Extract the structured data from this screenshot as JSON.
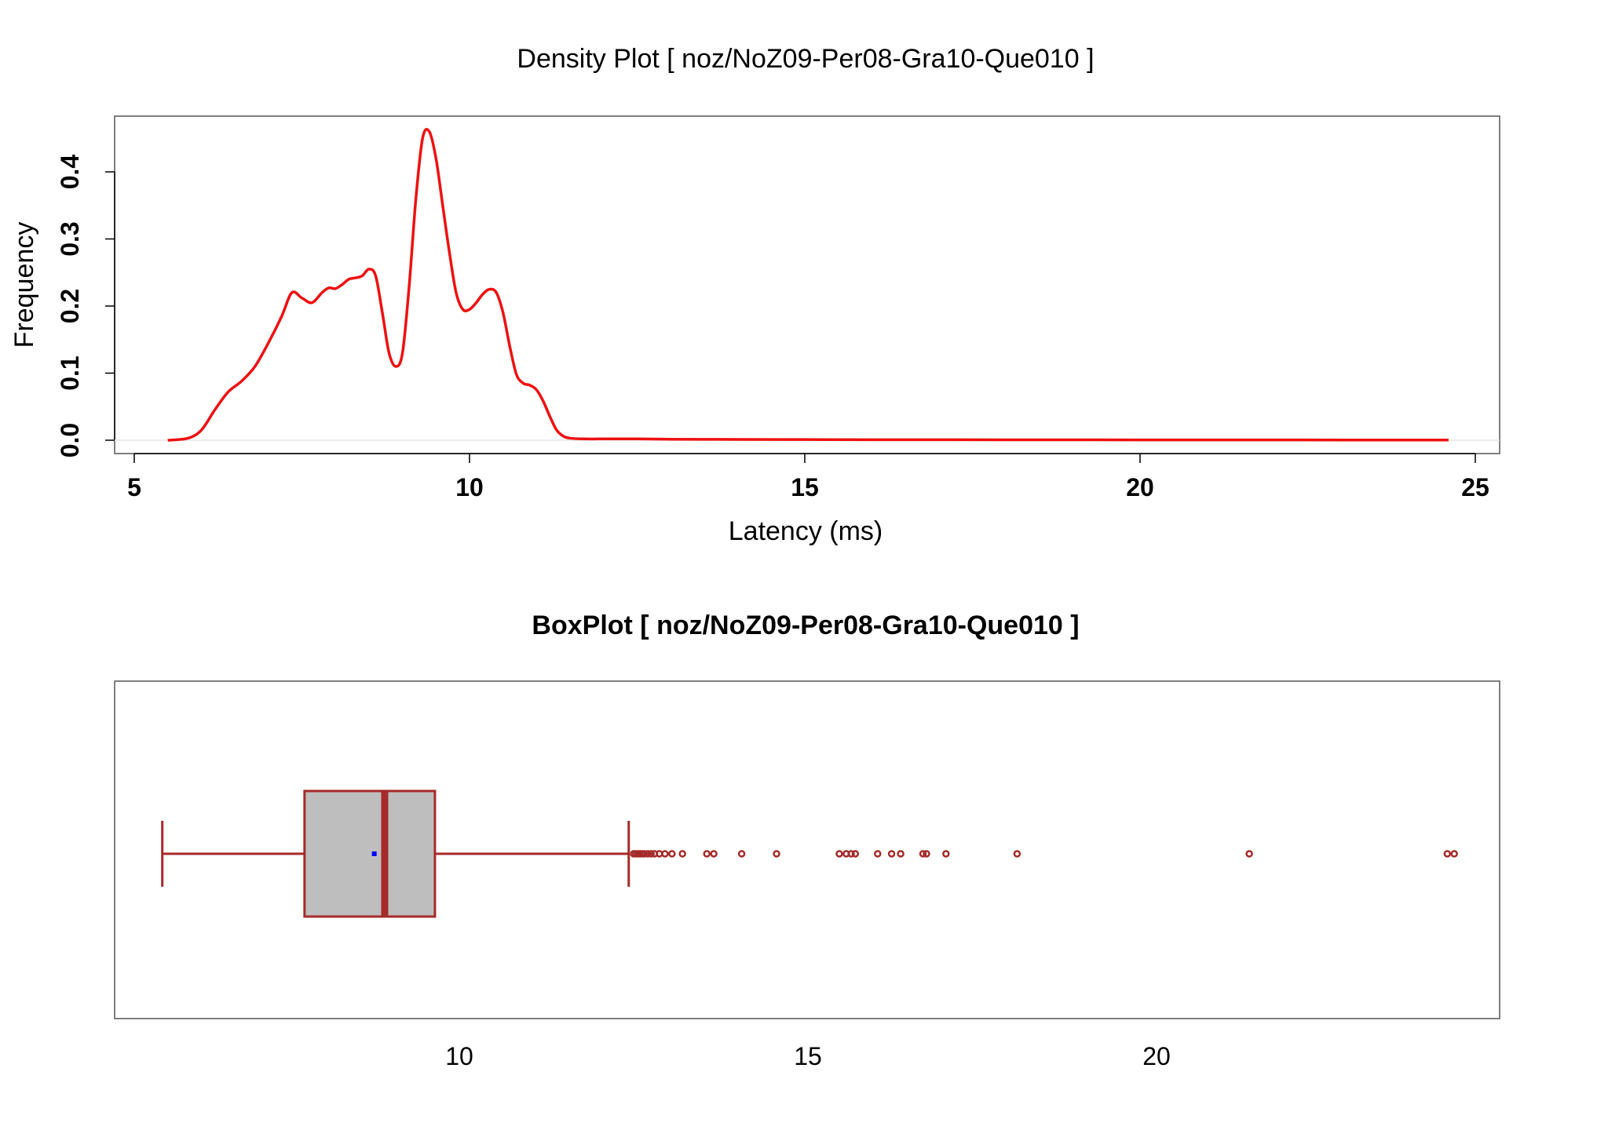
{
  "chart_data": [
    {
      "type": "line",
      "title": "Density Plot [ noz/NoZ09-Per08-Gra10-Que010 ]",
      "xlabel": "Latency (ms)",
      "ylabel": "Frequency",
      "xlim": [
        5,
        25
      ],
      "ylim": [
        0,
        0.46
      ],
      "xticks": [
        "5",
        "10",
        "15",
        "20",
        "25"
      ],
      "yticks": [
        "0.0",
        "0.1",
        "0.2",
        "0.3",
        "0.4"
      ],
      "line_color": "#ee1111",
      "series": [
        {
          "x": [
            5.5,
            5.8,
            6.0,
            6.2,
            6.4,
            6.6,
            6.8,
            7.0,
            7.2,
            7.35,
            7.5,
            7.65,
            7.8,
            7.9,
            8.0,
            8.1,
            8.2,
            8.3,
            8.4,
            8.5,
            8.6,
            8.7,
            8.8,
            8.9,
            9.0,
            9.1,
            9.2,
            9.3,
            9.4,
            9.5,
            9.6,
            9.7,
            9.8,
            9.9,
            10.0,
            10.1,
            10.2,
            10.3,
            10.4,
            10.5,
            10.6,
            10.7,
            10.8,
            10.9,
            11.0,
            11.1,
            11.2,
            11.3,
            11.4,
            11.5,
            11.7,
            12.0,
            12.5,
            13.0,
            14.0,
            15.0,
            16.0,
            18.0,
            20.0,
            22.0,
            24.6
          ],
          "y": [
            0.0,
            0.003,
            0.015,
            0.045,
            0.072,
            0.088,
            0.11,
            0.145,
            0.185,
            0.22,
            0.212,
            0.205,
            0.22,
            0.227,
            0.226,
            0.232,
            0.24,
            0.242,
            0.245,
            0.255,
            0.245,
            0.19,
            0.13,
            0.11,
            0.13,
            0.23,
            0.36,
            0.45,
            0.46,
            0.42,
            0.35,
            0.28,
            0.22,
            0.195,
            0.195,
            0.205,
            0.218,
            0.225,
            0.22,
            0.19,
            0.14,
            0.098,
            0.085,
            0.082,
            0.075,
            0.058,
            0.035,
            0.015,
            0.006,
            0.003,
            0.002,
            0.002,
            0.002,
            0.0015,
            0.0012,
            0.001,
            0.0008,
            0.0006,
            0.0005,
            0.0004,
            0.0003
          ]
        }
      ]
    },
    {
      "type": "box",
      "title": "BoxPlot [ noz/NoZ09-Per08-Gra10-Que010 ]",
      "xlim": [
        5.0,
        24.9
      ],
      "xticks": [
        "10",
        "15",
        "20"
      ],
      "color": "#a52a2a",
      "box_fill": "#bebebe",
      "mean_color": "#0000ff",
      "min_whisker": 5.74,
      "q1": 7.78,
      "median": 8.93,
      "q3": 9.65,
      "max_whisker": 12.43,
      "mean": 8.78,
      "outliers": [
        12.5,
        12.53,
        12.56,
        12.59,
        12.62,
        12.65,
        12.7,
        12.75,
        12.8,
        12.87,
        12.95,
        13.05,
        13.2,
        13.55,
        13.65,
        14.05,
        14.55,
        15.45,
        15.55,
        15.62,
        15.68,
        16.0,
        16.2,
        16.33,
        16.65,
        16.7,
        16.98,
        18.0,
        21.33,
        24.17,
        24.27
      ]
    }
  ]
}
